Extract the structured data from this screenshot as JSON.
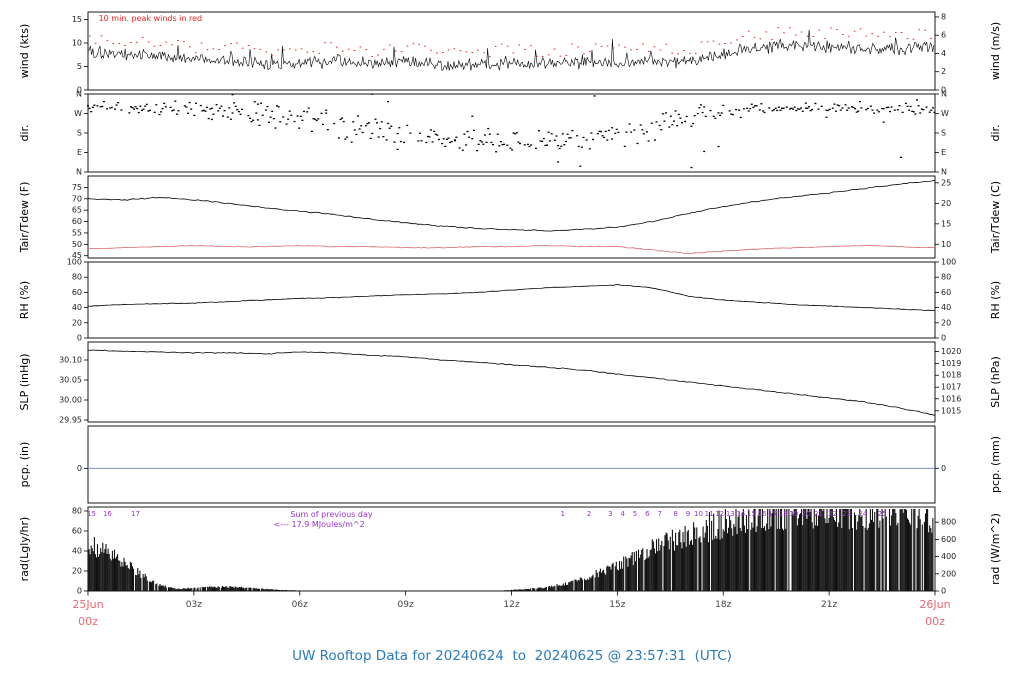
{
  "title": "UW Rooftop Data for 20240624  to  20240625 @ 23:57:31  (UTC)",
  "colors": {
    "trace": "#000000",
    "peak_red": "#e02828",
    "dew_red": "#d96a6f",
    "pcp_blue": "#7d8fcb",
    "purple": "#9933cc",
    "date_pink": "#e96a74",
    "title_blue": "#2b7bba",
    "tick_text": "#222222"
  },
  "x_axis": {
    "start_date": "25Jun",
    "start_hour": "00z",
    "end_date": "26Jun",
    "end_hour": "00z",
    "ticks": [
      {
        "label": "03z",
        "hour": 3
      },
      {
        "label": "06z",
        "hour": 6
      },
      {
        "label": "09z",
        "hour": 9
      },
      {
        "label": "12z",
        "hour": 12
      },
      {
        "label": "15z",
        "hour": 15
      },
      {
        "label": "18z",
        "hour": 18
      },
      {
        "label": "21z",
        "hour": 21
      }
    ]
  },
  "chart_data": [
    {
      "id": "wind",
      "type": "line",
      "left_label": "wind (kts)",
      "right_label": "wind (m/s)",
      "ylim": [
        0,
        16.6
      ],
      "left_ticks": {
        "labels": [
          "0",
          "5",
          "10",
          "15"
        ],
        "values": [
          0,
          5,
          10,
          15
        ]
      },
      "right_ticks": {
        "labels": [
          "0",
          "2",
          "4",
          "6",
          "8"
        ],
        "values": [
          0,
          3.89,
          7.78,
          11.66,
          15.55
        ]
      },
      "annotation": "10 min. peak winds in red",
      "values_kts": [
        8.5,
        7.5,
        7.2,
        6.5,
        6.2,
        5.6,
        6.0,
        6.2,
        5.6,
        6.0,
        5.5,
        5.2,
        6.0,
        5.4,
        6.0,
        5.6,
        6.2,
        5.8,
        7.6,
        9.0,
        9.5,
        9.2,
        9.0,
        8.6,
        9.2
      ],
      "noise_kts": 1.7,
      "peak_offset_kts": 2.2
    },
    {
      "id": "dir",
      "type": "scatter",
      "left_label": "dir.",
      "right_label": "dir.",
      "ylim": [
        0,
        360
      ],
      "left_ticks": {
        "labels": [
          "N",
          "W",
          "S",
          "E",
          "N"
        ],
        "values": [
          360,
          270,
          180,
          90,
          0
        ]
      },
      "right_ticks": {
        "labels": [
          "N",
          "W",
          "S",
          "E",
          "N"
        ],
        "values": [
          360,
          270,
          180,
          90,
          0
        ]
      },
      "mean_deg": [
        300,
        300,
        295,
        290,
        280,
        270,
        250,
        230,
        200,
        180,
        160,
        150,
        140,
        150,
        160,
        170,
        200,
        260,
        280,
        290,
        295,
        300,
        295,
        290,
        290
      ],
      "spread_deg": [
        30,
        35,
        40,
        45,
        60,
        70,
        80,
        80,
        80,
        70,
        60,
        60,
        60,
        60,
        60,
        70,
        80,
        60,
        40,
        30,
        25,
        25,
        30,
        30,
        30
      ]
    },
    {
      "id": "temp",
      "type": "line",
      "left_label": "Tair/Tdew (F)",
      "right_label": "Tair/Tdew (C)",
      "ylim": [
        44,
        80
      ],
      "left_ticks": {
        "labels": [
          "45",
          "50",
          "55",
          "60",
          "65",
          "70",
          "75"
        ],
        "values": [
          45,
          50,
          55,
          60,
          65,
          70,
          75
        ]
      },
      "right_ticks": {
        "labels": [
          "10",
          "15",
          "20",
          "25"
        ],
        "values": [
          50,
          59,
          68,
          77
        ]
      },
      "tair_f": [
        70,
        69.5,
        70.5,
        69.5,
        68,
        66,
        64.5,
        63,
        61,
        59.5,
        58,
        57,
        56.5,
        56,
        56.5,
        57.5,
        60,
        63.5,
        66.5,
        69,
        71,
        72.5,
        74.5,
        76.5,
        78
      ],
      "tdew_f": [
        48,
        48.5,
        49,
        49.5,
        49,
        49,
        49.5,
        49,
        49,
        48.5,
        48.5,
        49,
        49,
        49.5,
        49,
        49,
        47.5,
        46,
        47,
        48,
        48.5,
        49,
        49.5,
        49,
        48.5
      ]
    },
    {
      "id": "rh",
      "type": "line",
      "left_label": "RH (%)",
      "right_label": "RH (%)",
      "ylim": [
        0,
        100
      ],
      "left_ticks": {
        "labels": [
          "0",
          "20",
          "40",
          "60",
          "80",
          "100"
        ],
        "values": [
          0,
          20,
          40,
          60,
          80,
          100
        ]
      },
      "right_ticks": {
        "labels": [
          "0",
          "20",
          "40",
          "60",
          "80",
          "100"
        ],
        "values": [
          0,
          20,
          40,
          60,
          80,
          100
        ]
      },
      "values_pct": [
        42,
        44,
        45,
        46,
        48,
        50,
        52,
        53,
        55,
        57,
        58,
        60,
        63,
        66,
        68,
        70,
        66,
        55,
        50,
        47,
        44,
        42,
        40,
        38,
        36
      ]
    },
    {
      "id": "slp",
      "type": "line",
      "left_label": "SLP (inHg)",
      "right_label": "SLP (hPa)",
      "ylim": [
        29.945,
        30.145
      ],
      "left_ticks": {
        "labels": [
          "29.95",
          "30.00",
          "30.05",
          "30.10"
        ],
        "values": [
          29.95,
          30.0,
          30.05,
          30.1
        ]
      },
      "right_ticks": {
        "labels": [
          "1015",
          "1016",
          "1017",
          "1018",
          "1019",
          "1020"
        ],
        "values": [
          29.973,
          30.003,
          30.032,
          30.062,
          30.091,
          30.121
        ]
      },
      "values_inhg": [
        30.125,
        30.122,
        30.12,
        30.118,
        30.118,
        30.115,
        30.12,
        30.118,
        30.112,
        30.108,
        30.1,
        30.095,
        30.088,
        30.082,
        30.075,
        30.065,
        30.055,
        30.045,
        30.035,
        30.025,
        30.015,
        30.005,
        29.995,
        29.98,
        29.962
      ]
    },
    {
      "id": "pcp",
      "type": "line",
      "left_label": "pcp. (in)",
      "right_label": "pcp. (mm)",
      "ylim": [
        -0.45,
        0.55
      ],
      "left_ticks": {
        "labels": [
          "0"
        ],
        "values": [
          0
        ]
      },
      "right_ticks": {
        "labels": [
          "0"
        ],
        "values": [
          0
        ]
      },
      "zero_value": 0
    },
    {
      "id": "rad",
      "type": "bar",
      "left_label": "rad(Lgly/hr)",
      "right_label": "rad (W/m^2)",
      "ylim": [
        0,
        84
      ],
      "left_ticks": {
        "labels": [
          "0",
          "20",
          "40",
          "60",
          "80"
        ],
        "values": [
          0,
          20,
          40,
          60,
          80
        ]
      },
      "right_ticks": {
        "labels": [
          "0",
          "200",
          "400",
          "600",
          "800"
        ],
        "values": [
          0,
          17.2,
          34.4,
          51.6,
          68.8
        ]
      },
      "anchor_step_h": 0.5,
      "values_lyhr": [
        47,
        38,
        28,
        16,
        6,
        2,
        3,
        4,
        4,
        3,
        2,
        1,
        0.5,
        0,
        0,
        0,
        0,
        0,
        0,
        0,
        0,
        0,
        0,
        0,
        1,
        2,
        4,
        7,
        12,
        18,
        25,
        33,
        41,
        48,
        55,
        61,
        66,
        71,
        74,
        77,
        79,
        80,
        80,
        79,
        78,
        77,
        76,
        75,
        73
      ],
      "sum_label": "Sum of previous day",
      "sum_value_label": "<--- 17.9 MJoules/m^2",
      "sum_hour": 6.9,
      "sum_value_hour": 6.55,
      "mj_marks": [
        {
          "label": "15",
          "hour": 0.1
        },
        {
          "label": "16",
          "hour": 0.55
        },
        {
          "label": "17",
          "hour": 1.35
        },
        {
          "label": "1",
          "hour": 13.45
        },
        {
          "label": "2",
          "hour": 14.2
        },
        {
          "label": "3",
          "hour": 14.8
        },
        {
          "label": "4",
          "hour": 15.15
        },
        {
          "label": "5",
          "hour": 15.5
        },
        {
          "label": "6",
          "hour": 15.85
        },
        {
          "label": "7",
          "hour": 16.2
        },
        {
          "label": "8",
          "hour": 16.65
        },
        {
          "label": "9",
          "hour": 17.0
        },
        {
          "label": "10",
          "hour": 17.3
        },
        {
          "label": "11",
          "hour": 17.6
        },
        {
          "label": "12",
          "hour": 17.9
        },
        {
          "label": "13",
          "hour": 18.2
        },
        {
          "label": "14",
          "hour": 18.5
        },
        {
          "label": "15",
          "hour": 18.8
        },
        {
          "label": "16",
          "hour": 19.1
        },
        {
          "label": "17",
          "hour": 19.4
        },
        {
          "label": "18",
          "hour": 19.7
        },
        {
          "label": "19",
          "hour": 20.0
        },
        {
          "label": "20",
          "hour": 20.35
        },
        {
          "label": "21",
          "hour": 20.7
        },
        {
          "label": "22",
          "hour": 21.1
        },
        {
          "label": "23",
          "hour": 21.5
        },
        {
          "label": "24",
          "hour": 21.95
        },
        {
          "label": "25",
          "hour": 22.5
        }
      ]
    }
  ]
}
